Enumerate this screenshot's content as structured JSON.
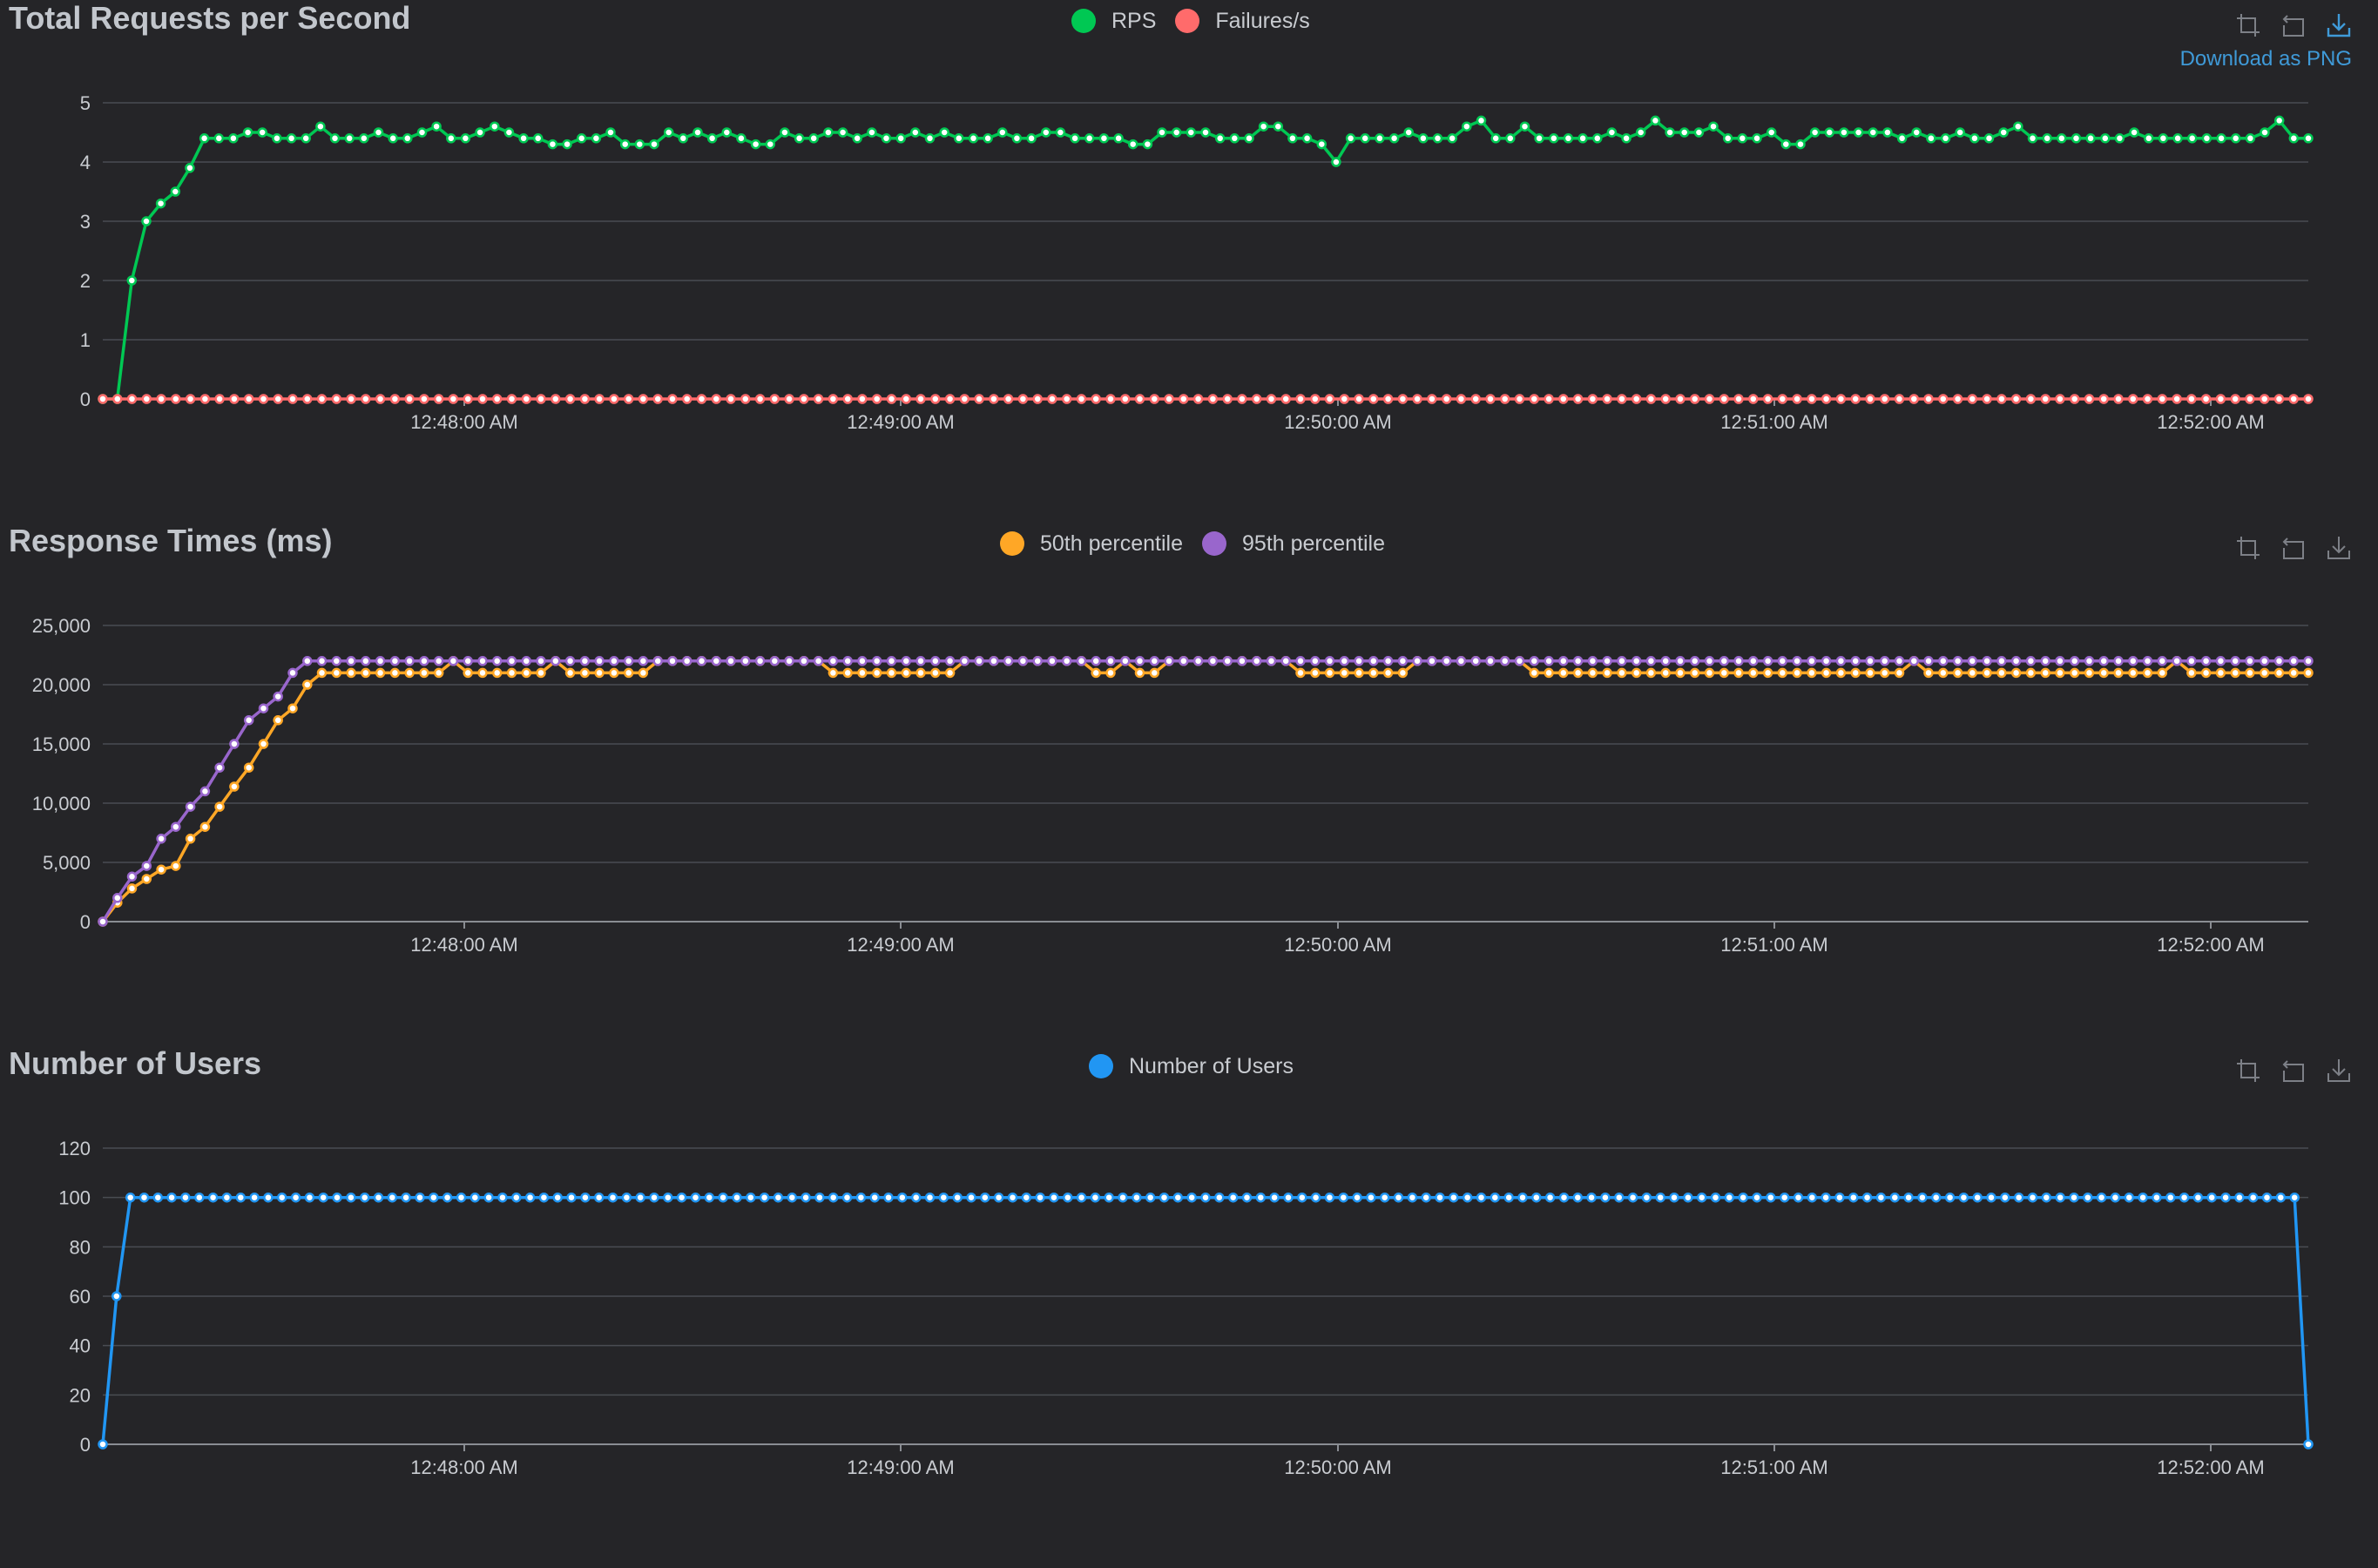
{
  "colors": {
    "rps": "#00c853",
    "failures": "#ff6b6b",
    "p50": "#ffa726",
    "p95": "#9966cc",
    "users": "#2196f3",
    "grid": "#4a4c52",
    "axis": "#8a8d93"
  },
  "toolbox": {
    "icons": [
      "zoom-icon",
      "restore-icon",
      "download-icon"
    ],
    "download_tooltip": "Download as PNG"
  },
  "chart_data": [
    {
      "type": "line",
      "title": "Total Requests per Second",
      "x_tick_labels": [
        "12:48:00 AM",
        "12:49:00 AM",
        "12:50:00 AM",
        "12:51:00 AM",
        "12:52:00 AM"
      ],
      "y_tick_labels": [
        "0",
        "1",
        "2",
        "3",
        "4",
        "5"
      ],
      "ylim": [
        0,
        5
      ],
      "legend": "top-center",
      "grid": true,
      "series": [
        {
          "name": "RPS",
          "values": [
            0,
            0,
            2,
            3,
            3.3,
            3.5,
            3.9,
            4.4,
            4.4,
            4.4,
            4.5,
            4.5,
            4.4,
            4.4,
            4.4,
            4.6,
            4.4,
            4.4,
            4.4,
            4.5,
            4.4,
            4.4,
            4.5,
            4.6,
            4.4,
            4.4,
            4.5,
            4.6,
            4.5,
            4.4,
            4.4,
            4.3,
            4.3,
            4.4,
            4.4,
            4.5,
            4.3,
            4.3,
            4.3,
            4.5,
            4.4,
            4.5,
            4.4,
            4.5,
            4.4,
            4.3,
            4.3,
            4.5,
            4.4,
            4.4,
            4.5,
            4.5,
            4.4,
            4.5,
            4.4,
            4.4,
            4.5,
            4.4,
            4.5,
            4.4,
            4.4,
            4.4,
            4.5,
            4.4,
            4.4,
            4.5,
            4.5,
            4.4,
            4.4,
            4.4,
            4.4,
            4.3,
            4.3,
            4.5,
            4.5,
            4.5,
            4.5,
            4.4,
            4.4,
            4.4,
            4.6,
            4.6,
            4.4,
            4.4,
            4.3,
            4.0,
            4.4,
            4.4,
            4.4,
            4.4,
            4.5,
            4.4,
            4.4,
            4.4,
            4.6,
            4.7,
            4.4,
            4.4,
            4.6,
            4.4,
            4.4,
            4.4,
            4.4,
            4.4,
            4.5,
            4.4,
            4.5,
            4.7,
            4.5,
            4.5,
            4.5,
            4.6,
            4.4,
            4.4,
            4.4,
            4.5,
            4.3,
            4.3,
            4.5,
            4.5,
            4.5,
            4.5,
            4.5,
            4.5,
            4.4,
            4.5,
            4.4,
            4.4,
            4.5,
            4.4,
            4.4,
            4.5,
            4.6,
            4.4,
            4.4,
            4.4,
            4.4,
            4.4,
            4.4,
            4.4,
            4.5,
            4.4,
            4.4,
            4.4,
            4.4,
            4.4,
            4.4,
            4.4,
            4.4,
            4.5,
            4.7,
            4.4,
            4.4
          ]
        },
        {
          "name": "Failures/s",
          "values": [
            0,
            0,
            0,
            0,
            0,
            0,
            0,
            0,
            0,
            0,
            0,
            0,
            0,
            0,
            0,
            0,
            0,
            0,
            0,
            0,
            0,
            0,
            0,
            0,
            0,
            0,
            0,
            0,
            0,
            0,
            0,
            0,
            0,
            0,
            0,
            0,
            0,
            0,
            0,
            0,
            0,
            0,
            0,
            0,
            0,
            0,
            0,
            0,
            0,
            0,
            0,
            0,
            0,
            0,
            0,
            0,
            0,
            0,
            0,
            0,
            0,
            0,
            0,
            0,
            0,
            0,
            0,
            0,
            0,
            0,
            0,
            0,
            0,
            0,
            0,
            0,
            0,
            0,
            0,
            0,
            0,
            0,
            0,
            0,
            0,
            0,
            0,
            0,
            0,
            0,
            0,
            0,
            0,
            0,
            0,
            0,
            0,
            0,
            0,
            0,
            0,
            0,
            0,
            0,
            0,
            0,
            0,
            0,
            0,
            0,
            0,
            0,
            0,
            0,
            0,
            0,
            0,
            0,
            0,
            0,
            0,
            0,
            0,
            0,
            0,
            0,
            0,
            0,
            0,
            0,
            0,
            0,
            0,
            0,
            0,
            0,
            0,
            0,
            0,
            0,
            0,
            0,
            0,
            0,
            0,
            0,
            0,
            0,
            0,
            0,
            0,
            0
          ]
        }
      ]
    },
    {
      "type": "line",
      "title": "Response Times (ms)",
      "x_tick_labels": [
        "12:48:00 AM",
        "12:49:00 AM",
        "12:50:00 AM",
        "12:51:00 AM",
        "12:52:00 AM"
      ],
      "y_tick_labels": [
        "0",
        "5,000",
        "10,000",
        "15,000",
        "20,000",
        "25,000"
      ],
      "ylim": [
        0,
        25000
      ],
      "legend": "top-center",
      "grid": true,
      "series": [
        {
          "name": "50th percentile",
          "values": [
            0,
            1600,
            2800,
            3600,
            4400,
            4700,
            7000,
            8000,
            9700,
            11400,
            13000,
            15000,
            17000,
            18000,
            20000,
            21000,
            21000,
            21000,
            21000,
            21000,
            21000,
            21000,
            21000,
            21000,
            22000,
            21000,
            21000,
            21000,
            21000,
            21000,
            21000,
            22000,
            21000,
            21000,
            21000,
            21000,
            21000,
            21000,
            22000,
            22000,
            22000,
            22000,
            22000,
            22000,
            22000,
            22000,
            22000,
            22000,
            22000,
            22000,
            21000,
            21000,
            21000,
            21000,
            21000,
            21000,
            21000,
            21000,
            21000,
            22000,
            22000,
            22000,
            22000,
            22000,
            22000,
            22000,
            22000,
            22000,
            21000,
            21000,
            22000,
            21000,
            21000,
            22000,
            22000,
            22000,
            22000,
            22000,
            22000,
            22000,
            22000,
            22000,
            21000,
            21000,
            21000,
            21000,
            21000,
            21000,
            21000,
            21000,
            22000,
            22000,
            22000,
            22000,
            22000,
            22000,
            22000,
            22000,
            21000,
            21000,
            21000,
            21000,
            21000,
            21000,
            21000,
            21000,
            21000,
            21000,
            21000,
            21000,
            21000,
            21000,
            21000,
            21000,
            21000,
            21000,
            21000,
            21000,
            21000,
            21000,
            21000,
            21000,
            21000,
            21000,
            22000,
            21000,
            21000,
            21000,
            21000,
            21000,
            21000,
            21000,
            21000,
            21000,
            21000,
            21000,
            21000,
            21000,
            21000,
            21000,
            21000,
            21000,
            22000,
            21000,
            21000,
            21000,
            21000,
            21000,
            21000,
            21000,
            21000,
            21000
          ]
        },
        {
          "name": "95th percentile",
          "values": [
            0,
            2000,
            3800,
            4700,
            7000,
            8000,
            9700,
            11000,
            13000,
            15000,
            17000,
            18000,
            19000,
            21000,
            22000,
            22000,
            22000,
            22000,
            22000,
            22000,
            22000,
            22000,
            22000,
            22000,
            22000,
            22000,
            22000,
            22000,
            22000,
            22000,
            22000,
            22000,
            22000,
            22000,
            22000,
            22000,
            22000,
            22000,
            22000,
            22000,
            22000,
            22000,
            22000,
            22000,
            22000,
            22000,
            22000,
            22000,
            22000,
            22000,
            22000,
            22000,
            22000,
            22000,
            22000,
            22000,
            22000,
            22000,
            22000,
            22000,
            22000,
            22000,
            22000,
            22000,
            22000,
            22000,
            22000,
            22000,
            22000,
            22000,
            22000,
            22000,
            22000,
            22000,
            22000,
            22000,
            22000,
            22000,
            22000,
            22000,
            22000,
            22000,
            22000,
            22000,
            22000,
            22000,
            22000,
            22000,
            22000,
            22000,
            22000,
            22000,
            22000,
            22000,
            22000,
            22000,
            22000,
            22000,
            22000,
            22000,
            22000,
            22000,
            22000,
            22000,
            22000,
            22000,
            22000,
            22000,
            22000,
            22000,
            22000,
            22000,
            22000,
            22000,
            22000,
            22000,
            22000,
            22000,
            22000,
            22000,
            22000,
            22000,
            22000,
            22000,
            22000,
            22000,
            22000,
            22000,
            22000,
            22000,
            22000,
            22000,
            22000,
            22000,
            22000,
            22000,
            22000,
            22000,
            22000,
            22000,
            22000,
            22000,
            22000,
            22000,
            22000,
            22000,
            22000,
            22000,
            22000,
            22000,
            22000,
            22000
          ]
        }
      ]
    },
    {
      "type": "line",
      "title": "Number of Users",
      "x_tick_labels": [
        "12:48:00 AM",
        "12:49:00 AM",
        "12:50:00 AM",
        "12:51:00 AM",
        "12:52:00 AM"
      ],
      "y_tick_labels": [
        "0",
        "20",
        "40",
        "60",
        "80",
        "100",
        "120"
      ],
      "ylim": [
        0,
        120
      ],
      "legend": "top-center",
      "grid": true,
      "series": [
        {
          "name": "Number of Users",
          "values": [
            0,
            60,
            100,
            100,
            100,
            100,
            100,
            100,
            100,
            100,
            100,
            100,
            100,
            100,
            100,
            100,
            100,
            100,
            100,
            100,
            100,
            100,
            100,
            100,
            100,
            100,
            100,
            100,
            100,
            100,
            100,
            100,
            100,
            100,
            100,
            100,
            100,
            100,
            100,
            100,
            100,
            100,
            100,
            100,
            100,
            100,
            100,
            100,
            100,
            100,
            100,
            100,
            100,
            100,
            100,
            100,
            100,
            100,
            100,
            100,
            100,
            100,
            100,
            100,
            100,
            100,
            100,
            100,
            100,
            100,
            100,
            100,
            100,
            100,
            100,
            100,
            100,
            100,
            100,
            100,
            100,
            100,
            100,
            100,
            100,
            100,
            100,
            100,
            100,
            100,
            100,
            100,
            100,
            100,
            100,
            100,
            100,
            100,
            100,
            100,
            100,
            100,
            100,
            100,
            100,
            100,
            100,
            100,
            100,
            100,
            100,
            100,
            100,
            100,
            100,
            100,
            100,
            100,
            100,
            100,
            100,
            100,
            100,
            100,
            100,
            100,
            100,
            100,
            100,
            100,
            100,
            100,
            100,
            100,
            100,
            100,
            100,
            100,
            100,
            100,
            100,
            100,
            100,
            100,
            100,
            100,
            100,
            100,
            100,
            100,
            100,
            100,
            100,
            100,
            100,
            100,
            100,
            100,
            100,
            100,
            0
          ]
        }
      ]
    }
  ]
}
